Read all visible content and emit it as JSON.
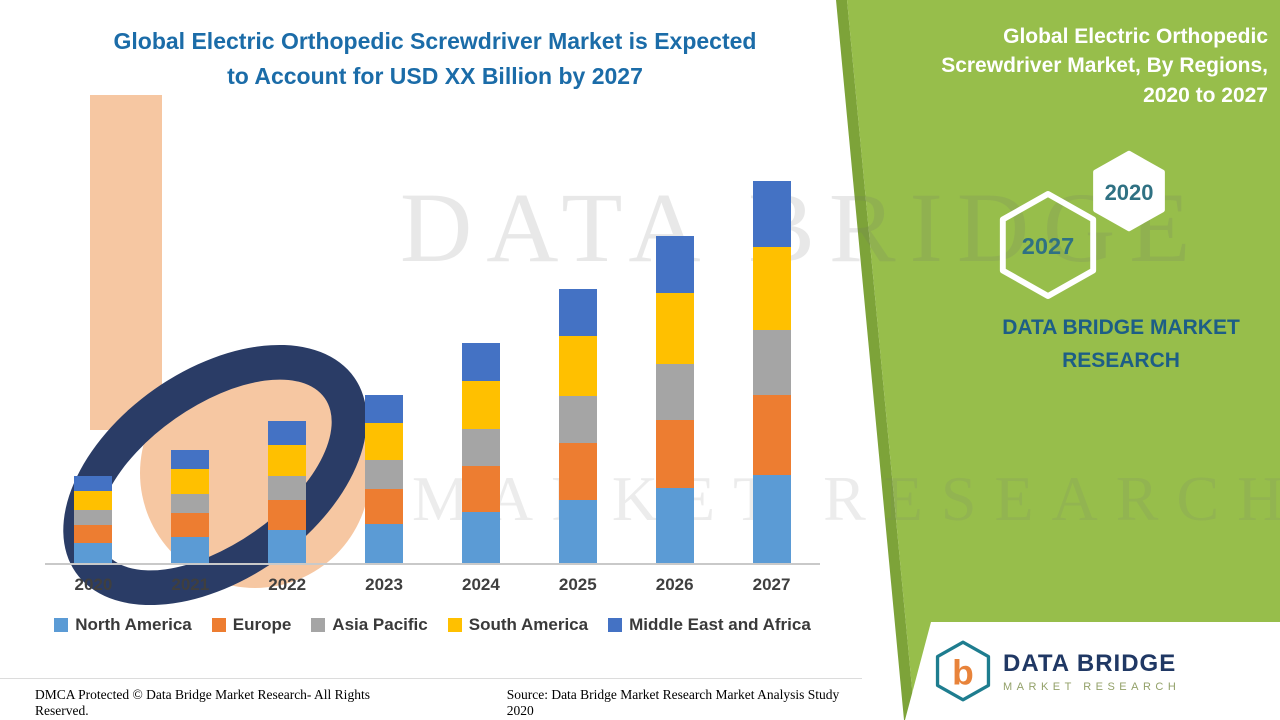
{
  "header": {
    "title": "Global Electric Orthopedic Screwdriver Market is Expected to Account for USD XX Billion by 2027"
  },
  "side_panel": {
    "title": "Global Electric Orthopedic Screwdriver Market, By Regions, 2020 to 2027",
    "hexagon_years": {
      "front": "2027",
      "back": "2020"
    },
    "brand_line1": "DATA BRIDGE MARKET",
    "brand_line2": "RESEARCH"
  },
  "watermark": {
    "line1": "DATA BRIDGE",
    "line2": "MARKET RESEARCH"
  },
  "colors": {
    "panel_green": "#97BE4B",
    "title_blue": "#1B6CA8"
  },
  "chart_data": {
    "type": "bar",
    "stacked": true,
    "title": "Global Electric Orthopedic Screwdriver Market is Expected to Account for USD XX Billion by 2027",
    "categories": [
      "2020",
      "2021",
      "2022",
      "2023",
      "2024",
      "2025",
      "2026",
      "2027"
    ],
    "series": [
      {
        "name": "North America",
        "color": "#5B9BD5",
        "values": [
          20,
          26,
          33,
          39,
          51,
          63,
          75,
          88
        ]
      },
      {
        "name": "Europe",
        "color": "#ED7D31",
        "values": [
          18,
          24,
          30,
          35,
          46,
          57,
          68,
          80
        ]
      },
      {
        "name": "Asia Pacific",
        "color": "#A5A5A5",
        "values": [
          15,
          19,
          24,
          29,
          37,
          47,
          56,
          65
        ]
      },
      {
        "name": "South America",
        "color": "#FFC000",
        "values": [
          19,
          25,
          31,
          37,
          48,
          60,
          71,
          83
        ]
      },
      {
        "name": "Middle East and Africa",
        "color": "#4472C4",
        "values": [
          15,
          19,
          24,
          28,
          38,
          47,
          57,
          66
        ]
      }
    ],
    "xlabel": "",
    "ylabel": "",
    "value_axis_labeled": false,
    "units": "relative units (market shown as USD XX Billion, no numeric axis labels in image)",
    "legend_position": "bottom",
    "grid": false
  },
  "footer": {
    "dmca": "DMCA Protected © Data Bridge Market Research- All Rights Reserved.",
    "source": "Source: Data Bridge Market Research Market Analysis Study 2020"
  },
  "logo": {
    "monogram": "b",
    "name_line1": "DATA BRIDGE",
    "name_line2": "MARKET RESEARCH"
  }
}
